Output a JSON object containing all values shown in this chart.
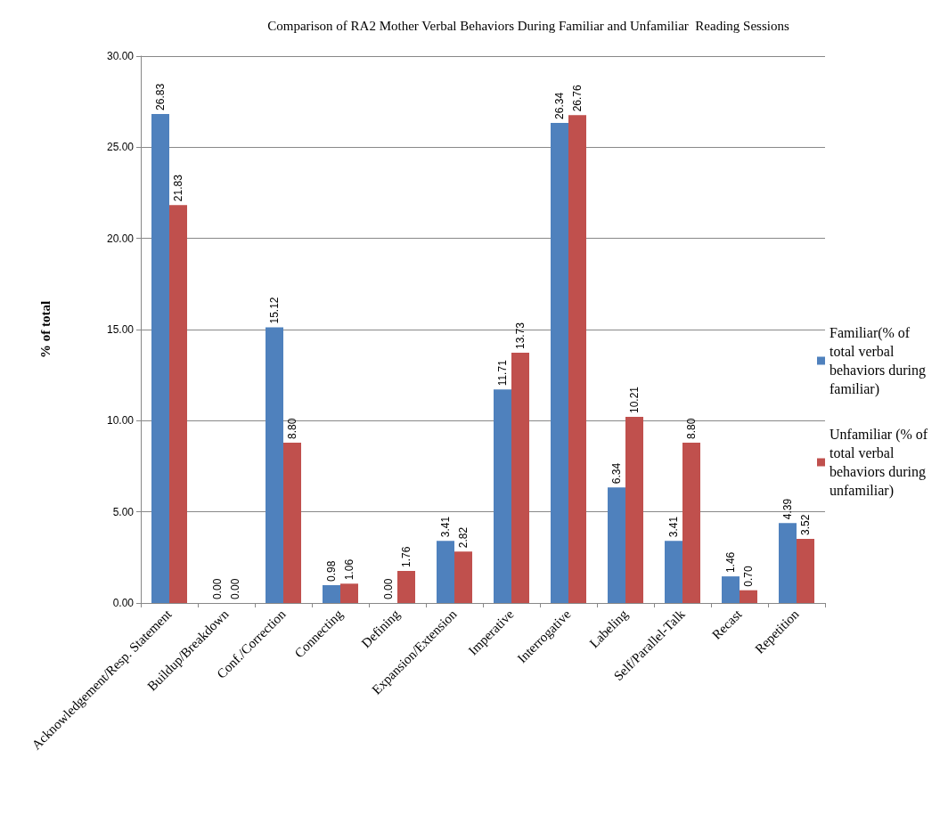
{
  "chart_data": {
    "type": "bar",
    "title": "Comparison of RA2 Mother Verbal Behaviors During Familiar and Unfamiliar  Reading Sessions",
    "ylabel": "% of total",
    "categories": [
      "Acknowledgement/Resp. Statement",
      "Buildup/Breakdown",
      "Conf./Correction",
      "Connecting",
      "Defining",
      "Expansion/Extension",
      "Imperative",
      "Interrogative",
      "Labeling",
      "Self/Parallel-Talk",
      "Recast",
      "Repetition"
    ],
    "series": [
      {
        "name": "Familiar(% of total verbal behaviors during familiar)",
        "color": "#4f81bd",
        "values": [
          26.83,
          0,
          15.12,
          0.98,
          0,
          3.41,
          11.71,
          26.34,
          6.34,
          3.41,
          1.46,
          4.39
        ],
        "value_labels": [
          "26.83",
          "0.00",
          "15.12",
          "0.98",
          "0.00",
          "3.41",
          "11.71",
          "26.34",
          "6.34",
          "3.41",
          "1.46",
          "4.39"
        ]
      },
      {
        "name": "Unfamiliar (% of total verbal behaviors during unfamiliar)",
        "color": "#c0504d",
        "values": [
          21.83,
          0,
          8.8,
          1.06,
          1.76,
          2.82,
          13.73,
          26.76,
          10.21,
          8.8,
          0.7,
          3.52
        ],
        "value_labels": [
          "21.83",
          "0.00",
          "8.80",
          "1.06",
          "1.76",
          "2.82",
          "13.73",
          "26.76",
          "10.21",
          "8.80",
          "0.70",
          "3.52"
        ]
      }
    ],
    "ylim": [
      0,
      30
    ],
    "yticks": [
      {
        "value": 0,
        "label": "0.00"
      },
      {
        "value": 5,
        "label": "5.00"
      },
      {
        "value": 10,
        "label": "10.00"
      },
      {
        "value": 15,
        "label": "15.00"
      },
      {
        "value": 20,
        "label": "20.00"
      },
      {
        "value": 25,
        "label": "25.00"
      },
      {
        "value": 30,
        "label": "30.00"
      }
    ],
    "grid": "y",
    "legend": "right"
  }
}
